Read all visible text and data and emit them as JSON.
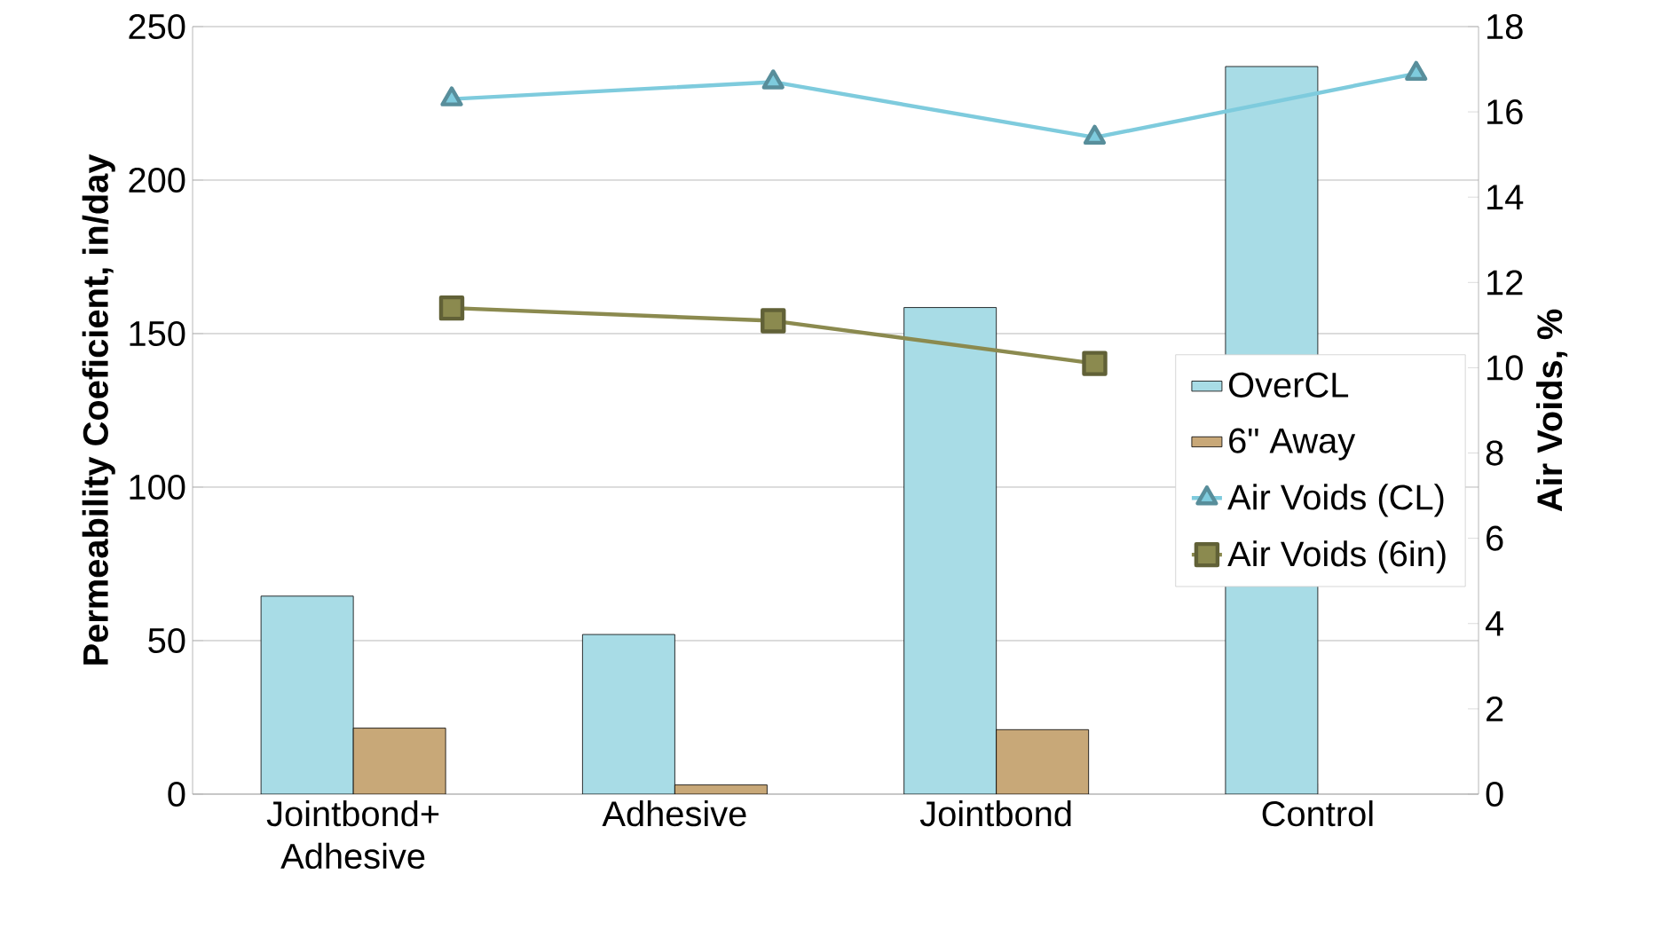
{
  "chart_data": {
    "type": "bar",
    "ylabel": "Permeability Coeficient, in/day",
    "y2label": "Air Voids, %",
    "categories": [
      "Jointbond+ Adhesive",
      "Adhesive",
      "Jointbond",
      "Control"
    ],
    "series": [
      {
        "name": "OverCL",
        "color": "#a8dce6",
        "values": [
          64.5,
          52,
          158.5,
          237
        ]
      },
      {
        "name": "6\" Away",
        "color": "#c8a878",
        "values": [
          21.5,
          3,
          21,
          null
        ]
      },
      {
        "name": "Air Voids (CL)",
        "type": "line",
        "axis": "y2",
        "marker": "triangle",
        "color": "#7ecbdd",
        "values": [
          16.3,
          16.7,
          15.4,
          16.9
        ]
      },
      {
        "name": "Air Voids (6in)",
        "type": "line",
        "axis": "y2",
        "marker": "square",
        "color": "#8b8a4f",
        "values": [
          11.4,
          11.1,
          10.1,
          null
        ]
      }
    ],
    "ylim": [
      0,
      250
    ],
    "yticks": [
      0,
      50,
      100,
      150,
      200,
      250
    ],
    "y2lim": [
      0,
      18
    ],
    "y2ticks": [
      0,
      2,
      4,
      6,
      8,
      10,
      12,
      14,
      16,
      18
    ],
    "grid": "y",
    "legend": "right"
  }
}
